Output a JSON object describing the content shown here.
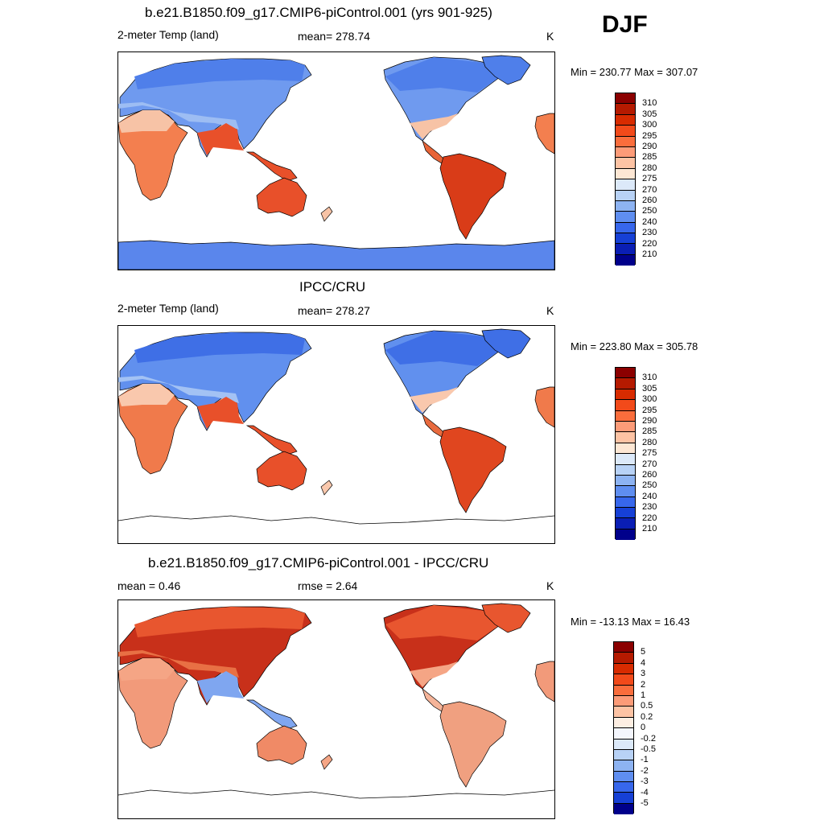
{
  "season_label": "DJF",
  "panels": [
    {
      "title": "b.e21.B1850.f09_g17.CMIP6-piControl.001 (yrs 901-925)",
      "left_label": "2-meter Temp (land)",
      "center_label": "mean= 278.74",
      "units": "K",
      "minmax": "Min = 230.77 Max = 307.07",
      "colorbar_labels": [
        "310",
        "305",
        "300",
        "295",
        "290",
        "285",
        "280",
        "275",
        "270",
        "260",
        "250",
        "240",
        "230",
        "220",
        "210"
      ],
      "colorbar_colors": [
        "#8b0000",
        "#b51a00",
        "#d82b00",
        "#f24a1a",
        "#fa6d3c",
        "#fc9b78",
        "#fdc3a4",
        "#fde7d4",
        "#dce9f9",
        "#b8d2f6",
        "#8db3f2",
        "#5f8ef0",
        "#3767ec",
        "#1640d6",
        "#0a1eb4",
        "#00008b"
      ],
      "zones": [
        "#4f7fea",
        "#6f9aef",
        "#9dbdf3",
        "#f7c3a6",
        "#f37f4f",
        "#e8502a",
        "#e8502a",
        "#d93c18",
        "#e86437",
        "#5a86ec"
      ]
    },
    {
      "title": "IPCC/CRU",
      "left_label": "2-meter Temp (land)",
      "center_label": "mean= 278.27",
      "units": "K",
      "minmax": "Min = 223.80 Max = 305.78",
      "colorbar_labels": [
        "310",
        "305",
        "300",
        "295",
        "290",
        "285",
        "280",
        "275",
        "270",
        "260",
        "250",
        "240",
        "230",
        "220",
        "210"
      ],
      "colorbar_colors": [
        "#8b0000",
        "#b51a00",
        "#d82b00",
        "#f24a1a",
        "#fa6d3c",
        "#fc9b78",
        "#fdc3a4",
        "#fde7d4",
        "#dce9f9",
        "#b8d2f6",
        "#8db3f2",
        "#5f8ef0",
        "#3767ec",
        "#1640d6",
        "#0a1eb4",
        "#00008b"
      ],
      "zones": [
        "#3f6fe6",
        "#6190ee",
        "#a3c2f4",
        "#f9c8ad",
        "#f07a4b",
        "#e8502a",
        "#e8502a",
        "#e0461f",
        "#e86a3e",
        "none"
      ]
    },
    {
      "title": "b.e21.B1850.f09_g17.CMIP6-piControl.001 - IPCC/CRU",
      "left_label": "mean =   0.46",
      "center_label": "rmse =   2.64",
      "units": "K",
      "minmax": "Min = -13.13 Max =  16.43",
      "colorbar_labels": [
        "5",
        "4",
        "3",
        "2",
        "1",
        "0.5",
        "0.2",
        "0",
        "-0.2",
        "-0.5",
        "-1",
        "-2",
        "-3",
        "-4",
        "-5"
      ],
      "colorbar_colors": [
        "#8b0000",
        "#b51a00",
        "#d82b00",
        "#f24a1a",
        "#fa6d3c",
        "#fc9b78",
        "#fdc3a4",
        "#fdeee2",
        "#f4f6fd",
        "#dce9f9",
        "#b8d2f6",
        "#8db3f2",
        "#5f8ef0",
        "#3767ec",
        "#1640d6",
        "#00008b"
      ],
      "zones": [
        "#e8562f",
        "#c8301a",
        "#e87044",
        "#f5a585",
        "#f29a7a",
        "#7fa6f0",
        "#f08a66",
        "#f0a080",
        "#f5b499",
        "none"
      ]
    }
  ],
  "chart_data": [
    {
      "type": "heatmap",
      "title": "b.e21.B1850.f09_g17.CMIP6-piControl.001 (yrs 901-925)",
      "variable": "2-meter Temp (land)",
      "season": "DJF",
      "units": "K",
      "mean": 278.74,
      "min": 230.77,
      "max": 307.07,
      "color_levels": [
        210,
        220,
        230,
        240,
        250,
        260,
        270,
        275,
        280,
        285,
        290,
        295,
        300,
        305,
        310
      ]
    },
    {
      "type": "heatmap",
      "title": "IPCC/CRU",
      "variable": "2-meter Temp (land)",
      "season": "DJF",
      "units": "K",
      "mean": 278.27,
      "min": 223.8,
      "max": 305.78,
      "color_levels": [
        210,
        220,
        230,
        240,
        250,
        260,
        270,
        275,
        280,
        285,
        290,
        295,
        300,
        305,
        310
      ]
    },
    {
      "type": "heatmap",
      "title": "b.e21.B1850.f09_g17.CMIP6-piControl.001 - IPCC/CRU",
      "season": "DJF",
      "units": "K",
      "mean": 0.46,
      "rmse": 2.64,
      "min": -13.13,
      "max": 16.43,
      "color_levels": [
        -5,
        -4,
        -3,
        -2,
        -1,
        -0.5,
        -0.2,
        0,
        0.2,
        0.5,
        1,
        2,
        3,
        4,
        5
      ]
    }
  ]
}
